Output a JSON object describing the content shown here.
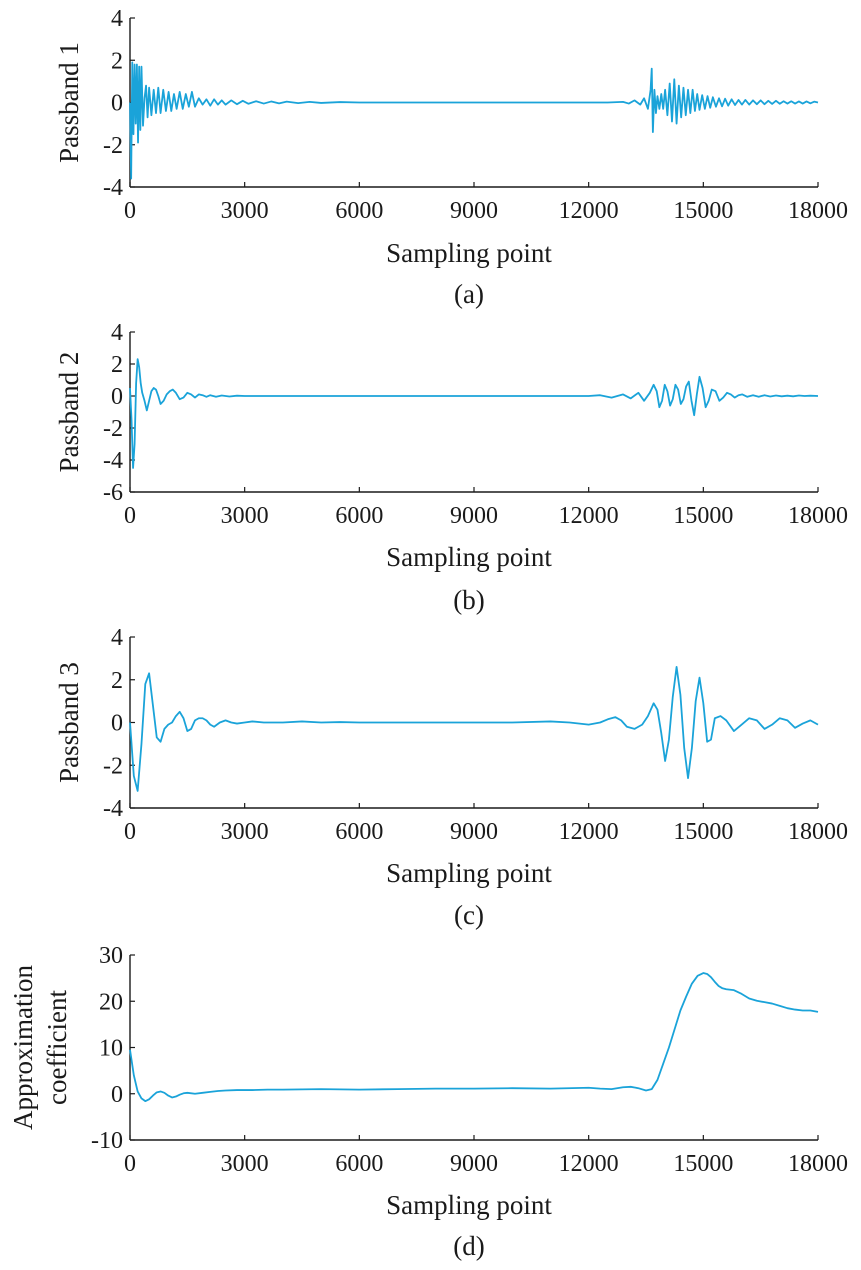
{
  "chart_data": [
    {
      "type": "line",
      "panel_label": "(a)",
      "xlabel": "Sampling point",
      "ylabel": "Passband 1",
      "xlim": [
        0,
        18000
      ],
      "ylim": [
        -4,
        4
      ],
      "xticks": [
        0,
        3000,
        6000,
        9000,
        12000,
        15000,
        18000
      ],
      "xtick_labels": [
        "0",
        "3000",
        "6000",
        "9000",
        "12000",
        "15000",
        "18000"
      ],
      "yticks": [
        -4,
        -2,
        0,
        2,
        4
      ],
      "ytick_labels": [
        "-4",
        "-2",
        "0",
        "2",
        "4"
      ],
      "grid": false,
      "color": "#1aa3d9",
      "series": [
        {
          "x": [
            0,
            30,
            60,
            90,
            120,
            150,
            180,
            210,
            240,
            270,
            300,
            340,
            380,
            420,
            460,
            500,
            560,
            620,
            680,
            740,
            800,
            870,
            940,
            1010,
            1080,
            1150,
            1220,
            1300,
            1380,
            1460,
            1540,
            1620,
            1700,
            1800,
            1900,
            2000,
            2100,
            2200,
            2300,
            2400,
            2500,
            2650,
            2800,
            2950,
            3100,
            3300,
            3500,
            3700,
            3900,
            4100,
            4400,
            4700,
            5000,
            5500,
            6000,
            7000,
            8000,
            9000,
            10000,
            11000,
            12000,
            12500,
            12900,
            13050,
            13200,
            13350,
            13450,
            13550,
            13620,
            13650,
            13680,
            13720,
            13760,
            13800,
            13850,
            13900,
            13950,
            14000,
            14060,
            14120,
            14180,
            14240,
            14300,
            14360,
            14420,
            14480,
            14540,
            14600,
            14660,
            14720,
            14780,
            14840,
            14900,
            14970,
            15040,
            15110,
            15180,
            15250,
            15330,
            15410,
            15490,
            15570,
            15650,
            15740,
            15830,
            15920,
            16010,
            16100,
            16200,
            16300,
            16400,
            16500,
            16600,
            16700,
            16800,
            16900,
            17000,
            17100,
            17200,
            17300,
            17400,
            17500,
            17600,
            17700,
            17800,
            17900,
            18000
          ],
          "y": [
            0,
            -3.6,
            1.9,
            -1.5,
            1.8,
            -1.0,
            1.8,
            -1.9,
            1.7,
            -1.3,
            1.7,
            -1.1,
            0.2,
            0.8,
            -0.7,
            0.7,
            -0.6,
            0.6,
            -0.5,
            0.7,
            -0.5,
            0.6,
            -0.4,
            0.5,
            -0.4,
            0.4,
            -0.3,
            0.5,
            -0.3,
            0.4,
            -0.2,
            0.5,
            -0.2,
            0.2,
            -0.1,
            0.15,
            -0.15,
            0.15,
            -0.1,
            0.1,
            -0.1,
            0.1,
            -0.08,
            0.08,
            -0.06,
            0.06,
            -0.05,
            0.05,
            -0.04,
            0.04,
            -0.03,
            0.03,
            -0.02,
            0.02,
            0.0,
            0.0,
            0.0,
            0.0,
            0.0,
            0.0,
            0.0,
            0.0,
            0.03,
            -0.05,
            0.1,
            -0.1,
            0.2,
            -0.3,
            0.6,
            1.6,
            -1.4,
            0.6,
            -0.5,
            0.3,
            -0.3,
            0.4,
            -0.3,
            0.6,
            -0.6,
            0.9,
            -0.9,
            1.1,
            -1.0,
            0.8,
            -0.7,
            0.7,
            -0.6,
            0.6,
            -0.5,
            0.6,
            -0.4,
            0.4,
            -0.35,
            0.35,
            -0.3,
            0.3,
            -0.25,
            0.25,
            -0.2,
            0.2,
            -0.18,
            0.18,
            -0.15,
            0.15,
            -0.12,
            0.12,
            -0.1,
            0.12,
            -0.1,
            0.1,
            -0.08,
            0.1,
            -0.08,
            0.08,
            -0.07,
            0.08,
            -0.06,
            0.06,
            -0.05,
            0.06,
            -0.05,
            0.05,
            -0.05,
            0.05,
            -0.04,
            0.04,
            0.0
          ]
        }
      ]
    },
    {
      "type": "line",
      "panel_label": "(b)",
      "xlabel": "Sampling point",
      "ylabel": "Passband 2",
      "xlim": [
        0,
        18000
      ],
      "ylim": [
        -6,
        4
      ],
      "xticks": [
        0,
        3000,
        6000,
        9000,
        12000,
        15000,
        18000
      ],
      "xtick_labels": [
        "0",
        "3000",
        "6000",
        "9000",
        "12000",
        "15000",
        "18000"
      ],
      "yticks": [
        -6,
        -4,
        -2,
        0,
        2,
        4
      ],
      "ytick_labels": [
        "-6",
        "-4",
        "-2",
        "0",
        "2",
        "4"
      ],
      "grid": false,
      "color": "#1aa3d9",
      "series": [
        {
          "x": [
            0,
            40,
            80,
            120,
            160,
            200,
            240,
            280,
            320,
            380,
            440,
            500,
            560,
            620,
            680,
            740,
            800,
            880,
            960,
            1040,
            1120,
            1200,
            1300,
            1400,
            1500,
            1600,
            1700,
            1800,
            1900,
            2000,
            2100,
            2250,
            2400,
            2600,
            2800,
            3000,
            3500,
            4000,
            5000,
            6000,
            7000,
            8000,
            9000,
            10000,
            11000,
            12000,
            12300,
            12600,
            12900,
            13100,
            13300,
            13450,
            13600,
            13700,
            13780,
            13850,
            13920,
            13990,
            14060,
            14130,
            14200,
            14270,
            14340,
            14410,
            14480,
            14550,
            14620,
            14690,
            14760,
            14830,
            14900,
            14980,
            15060,
            15140,
            15220,
            15320,
            15420,
            15520,
            15620,
            15720,
            15820,
            15920,
            16020,
            16150,
            16300,
            16450,
            16600,
            16750,
            16900,
            17050,
            17200,
            17350,
            17500,
            17650,
            17800,
            18000
          ],
          "y": [
            0.5,
            -1.5,
            -4.5,
            -3.0,
            0.8,
            2.3,
            1.8,
            0.8,
            0.2,
            -0.3,
            -0.9,
            -0.3,
            0.3,
            0.5,
            0.4,
            0.0,
            -0.5,
            -0.3,
            0.1,
            0.3,
            0.4,
            0.2,
            -0.2,
            -0.1,
            0.2,
            0.1,
            -0.1,
            0.1,
            0.05,
            -0.05,
            0.05,
            -0.05,
            0.03,
            -0.03,
            0.02,
            0.0,
            0.0,
            0.0,
            0.0,
            0.0,
            0.0,
            0.0,
            0.0,
            0.0,
            0.0,
            0.0,
            0.05,
            -0.1,
            0.1,
            -0.15,
            0.2,
            -0.3,
            0.2,
            0.7,
            0.3,
            -0.7,
            -0.3,
            0.7,
            0.3,
            -0.6,
            -0.2,
            0.7,
            0.4,
            -0.5,
            -0.2,
            0.6,
            0.9,
            -0.3,
            -1.2,
            0.1,
            1.2,
            0.5,
            -0.7,
            -0.3,
            0.4,
            0.3,
            -0.3,
            -0.1,
            0.2,
            0.1,
            -0.1,
            0.05,
            0.1,
            -0.05,
            0.05,
            -0.05,
            0.05,
            -0.03,
            0.03,
            -0.02,
            0.02,
            -0.02,
            0.03,
            0.0,
            0.02,
            0.0
          ]
        }
      ]
    },
    {
      "type": "line",
      "panel_label": "(c)",
      "xlabel": "Sampling point",
      "ylabel": "Passband 3",
      "xlim": [
        0,
        18000
      ],
      "ylim": [
        -4,
        4
      ],
      "xticks": [
        0,
        3000,
        6000,
        9000,
        12000,
        15000,
        18000
      ],
      "xtick_labels": [
        "0",
        "3000",
        "6000",
        "9000",
        "12000",
        "15000",
        "18000"
      ],
      "yticks": [
        -4,
        -2,
        0,
        2,
        4
      ],
      "ytick_labels": [
        "-4",
        "-2",
        "0",
        "2",
        "4"
      ],
      "grid": false,
      "color": "#1aa3d9",
      "series": [
        {
          "x": [
            0,
            100,
            200,
            300,
            400,
            500,
            600,
            700,
            800,
            900,
            1000,
            1100,
            1200,
            1300,
            1400,
            1500,
            1600,
            1700,
            1800,
            1900,
            2000,
            2100,
            2200,
            2350,
            2500,
            2650,
            2800,
            3000,
            3200,
            3500,
            4000,
            4500,
            5000,
            5500,
            6000,
            7000,
            8000,
            9000,
            10000,
            11000,
            11500,
            12000,
            12300,
            12500,
            12700,
            12850,
            13000,
            13200,
            13400,
            13550,
            13700,
            13800,
            13900,
            14000,
            14100,
            14200,
            14300,
            14400,
            14500,
            14600,
            14700,
            14800,
            14900,
            15000,
            15100,
            15200,
            15300,
            15450,
            15600,
            15800,
            16000,
            16200,
            16400,
            16600,
            16800,
            17000,
            17200,
            17400,
            17600,
            17800,
            18000
          ],
          "y": [
            0.0,
            -2.5,
            -3.2,
            -1.0,
            1.8,
            2.3,
            0.8,
            -0.7,
            -0.9,
            -0.3,
            -0.1,
            0.0,
            0.3,
            0.5,
            0.2,
            -0.4,
            -0.3,
            0.1,
            0.2,
            0.2,
            0.1,
            -0.1,
            -0.2,
            0.0,
            0.1,
            0.0,
            -0.05,
            0.0,
            0.05,
            0.0,
            0.0,
            0.05,
            0.0,
            0.02,
            0.0,
            0.0,
            0.0,
            0.0,
            0.0,
            0.05,
            0.0,
            -0.1,
            0.0,
            0.15,
            0.25,
            0.1,
            -0.2,
            -0.3,
            -0.1,
            0.3,
            0.9,
            0.6,
            -0.5,
            -1.8,
            -0.8,
            1.2,
            2.6,
            1.3,
            -1.2,
            -2.6,
            -1.2,
            1.0,
            2.1,
            0.9,
            -0.9,
            -0.8,
            0.2,
            0.3,
            0.1,
            -0.4,
            -0.1,
            0.2,
            0.1,
            -0.3,
            -0.1,
            0.2,
            0.1,
            -0.25,
            -0.05,
            0.1,
            -0.1
          ]
        }
      ]
    },
    {
      "type": "line",
      "panel_label": "(d)",
      "xlabel": "Sampling point",
      "ylabel": "Approximation coefficient",
      "ylabel_lines": [
        "Approximation",
        "coefficient"
      ],
      "xlim": [
        0,
        18000
      ],
      "ylim": [
        -10,
        30
      ],
      "xticks": [
        0,
        3000,
        6000,
        9000,
        12000,
        15000,
        18000
      ],
      "xtick_labels": [
        "0",
        "3000",
        "6000",
        "9000",
        "12000",
        "15000",
        "18000"
      ],
      "yticks": [
        -10,
        0,
        10,
        20,
        30
      ],
      "ytick_labels": [
        "-10",
        "0",
        "10",
        "20",
        "30"
      ],
      "grid": false,
      "color": "#1aa3d9",
      "series": [
        {
          "x": [
            0,
            100,
            200,
            300,
            400,
            500,
            600,
            700,
            800,
            900,
            1000,
            1100,
            1200,
            1300,
            1400,
            1500,
            1700,
            1900,
            2100,
            2300,
            2500,
            2800,
            3200,
            3600,
            4000,
            5000,
            6000,
            7000,
            8000,
            9000,
            10000,
            11000,
            12000,
            12300,
            12600,
            12900,
            13100,
            13300,
            13500,
            13650,
            13800,
            13950,
            14100,
            14250,
            14400,
            14550,
            14700,
            14850,
            15000,
            15100,
            15200,
            15300,
            15400,
            15500,
            15600,
            15800,
            16000,
            16200,
            16400,
            16600,
            16800,
            17000,
            17200,
            17400,
            17600,
            17800,
            18000
          ],
          "y": [
            9.5,
            4.0,
            0.5,
            -1.0,
            -1.6,
            -1.2,
            -0.4,
            0.3,
            0.5,
            0.2,
            -0.4,
            -0.8,
            -0.6,
            -0.2,
            0.1,
            0.2,
            0.0,
            0.2,
            0.4,
            0.6,
            0.7,
            0.8,
            0.8,
            0.9,
            0.9,
            1.0,
            0.9,
            1.0,
            1.1,
            1.1,
            1.2,
            1.1,
            1.3,
            1.1,
            1.0,
            1.4,
            1.5,
            1.2,
            0.7,
            1.0,
            3.0,
            6.5,
            10.0,
            14.0,
            18.0,
            21.0,
            23.8,
            25.5,
            26.1,
            25.9,
            25.2,
            24.2,
            23.3,
            22.8,
            22.6,
            22.4,
            21.6,
            20.6,
            20.1,
            19.8,
            19.5,
            19.0,
            18.5,
            18.2,
            18.0,
            18.0,
            17.7
          ]
        }
      ]
    }
  ]
}
